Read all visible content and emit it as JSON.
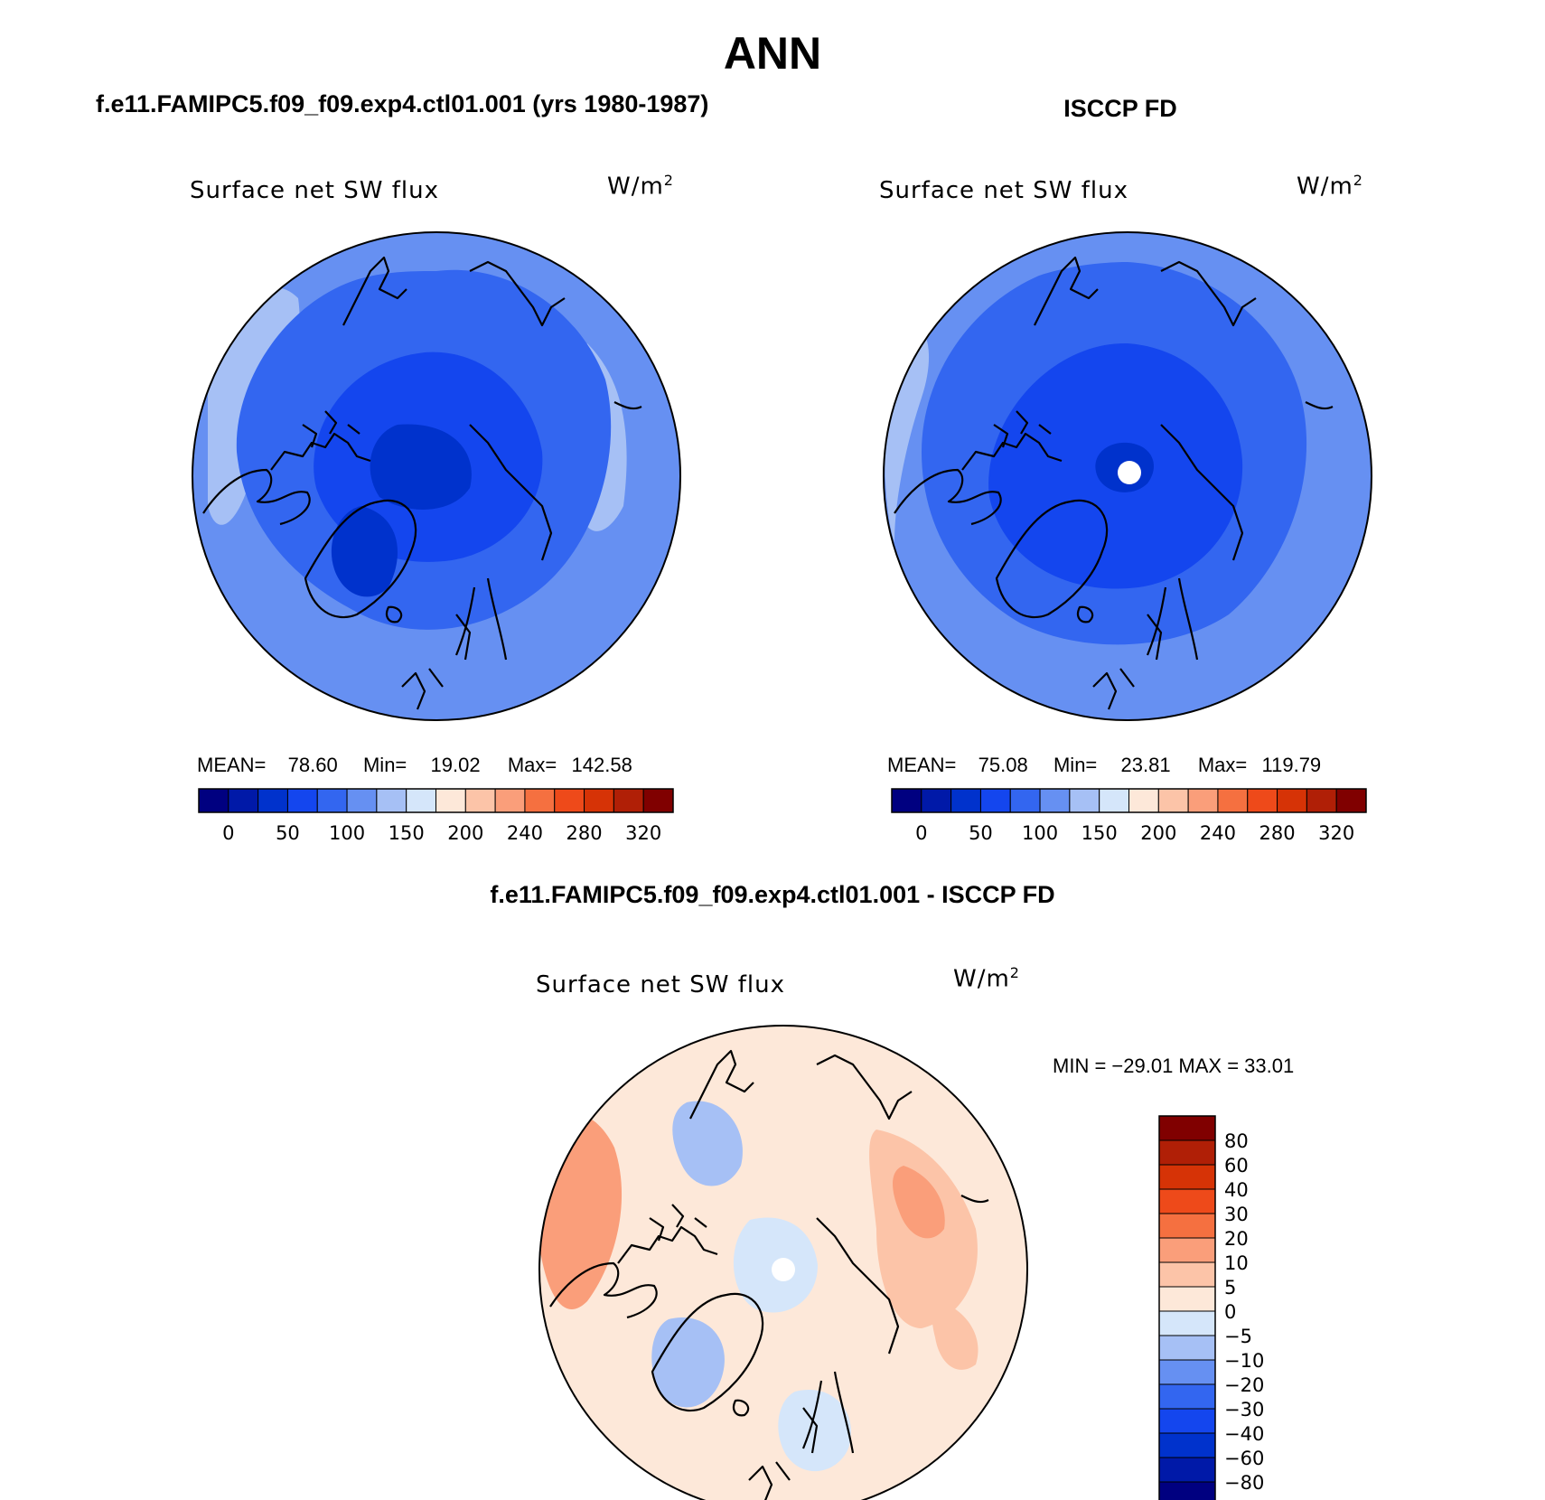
{
  "header": {
    "title": "ANN",
    "left_subtitle": "f.e11.FAMIPC5.f09_f09.exp4.ctl01.001 (yrs 1980-1987)",
    "right_subtitle": "ISCCP FD",
    "bottom_subtitle": "f.e11.FAMIPC5.f09_f09.exp4.ctl01.001 - ISCCP FD"
  },
  "panels": [
    {
      "variable": "Surface net SW flux",
      "units": "W/m",
      "units_sup": "2",
      "mean_label": "MEAN=",
      "mean": "78.60",
      "min_label": "Min=",
      "min": "19.02",
      "max_label": "Max=",
      "max": "142.58"
    },
    {
      "variable": "Surface net SW flux",
      "units": "W/m",
      "units_sup": "2",
      "mean_label": "MEAN=",
      "mean": "75.08",
      "min_label": "Min=",
      "min": "23.81",
      "max_label": "Max=",
      "max": "119.79"
    }
  ],
  "diff_panel": {
    "variable": "Surface net SW flux",
    "units": "W/m",
    "units_sup": "2",
    "stats": "MIN = −29.01 MAX =   33.01"
  },
  "colorbar": {
    "colors": [
      "#000080",
      "#0019a8",
      "#0032cc",
      "#1446ee",
      "#3366f0",
      "#6690f2",
      "#a6c0f5",
      "#d5e6fa",
      "#fde8d9",
      "#fcc4a8",
      "#fa9e7a",
      "#f57040",
      "#ee4a1a",
      "#d63306",
      "#b01f06",
      "#800000"
    ],
    "labels": [
      "0",
      "50",
      "100",
      "150",
      "200",
      "240",
      "280",
      "320"
    ]
  },
  "diff_colorbar": {
    "colors": [
      "#000080",
      "#0019a8",
      "#0032cc",
      "#1446ee",
      "#3366f0",
      "#6690f2",
      "#a6c0f5",
      "#d5e6fa",
      "#fde8d9",
      "#fcc4a8",
      "#fa9e7a",
      "#f57040",
      "#ee4a1a",
      "#d63306",
      "#b01f06",
      "#800000"
    ],
    "labels": [
      "80",
      "60",
      "40",
      "30",
      "20",
      "10",
      "5",
      "0",
      "−5",
      "−10",
      "−20",
      "−30",
      "−40",
      "−60",
      "−80"
    ]
  },
  "chart_data": [
    {
      "type": "heatmap",
      "projection": "north polar stereographic",
      "title": "Surface net SW flux",
      "units": "W/m2",
      "mean": 78.6,
      "min": 19.02,
      "max": 142.58,
      "contour_levels": [
        0,
        25,
        50,
        75,
        100,
        125,
        150,
        175,
        200,
        220,
        240,
        260,
        280,
        300,
        320
      ]
    },
    {
      "type": "heatmap",
      "projection": "north polar stereographic",
      "title": "Surface net SW flux",
      "units": "W/m2",
      "mean": 75.08,
      "min": 23.81,
      "max": 119.79,
      "contour_levels": [
        0,
        25,
        50,
        75,
        100,
        125,
        150,
        175,
        200,
        220,
        240,
        260,
        280,
        300,
        320
      ]
    },
    {
      "type": "heatmap",
      "projection": "north polar stereographic",
      "title": "Surface net SW flux",
      "units": "W/m2",
      "min": -29.01,
      "max": 33.01,
      "contour_levels": [
        -80,
        -60,
        -40,
        -30,
        -20,
        -10,
        -5,
        0,
        5,
        10,
        20,
        30,
        40,
        60,
        80
      ]
    }
  ]
}
